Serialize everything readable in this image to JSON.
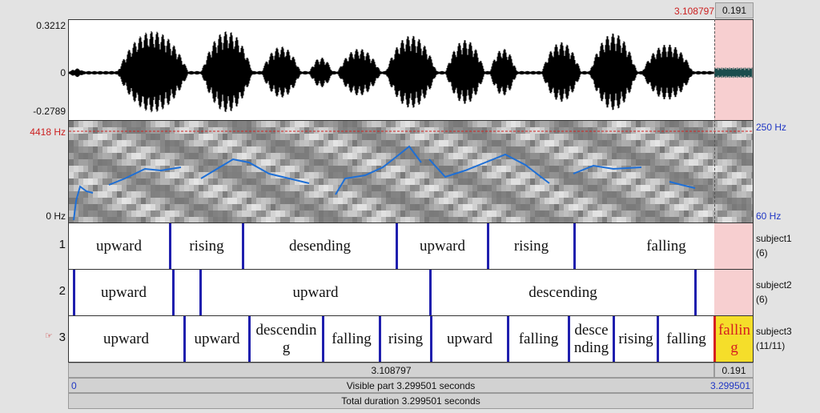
{
  "top": {
    "cursor_time": "3.108797",
    "selection_len": "0.191"
  },
  "waveform": {
    "y_max": "0.3212",
    "y_zero": "0",
    "y_min": "-0.2789"
  },
  "spectrogram": {
    "freq_max": "4418 Hz",
    "freq_min": "0 Hz",
    "pitch_max": "250 Hz",
    "pitch_min": "60 Hz"
  },
  "tiers": [
    {
      "number": "1",
      "name": "subject1",
      "count": "(6)",
      "intervals": [
        "upward",
        "rising",
        "desending",
        "upward",
        "rising",
        "falling"
      ]
    },
    {
      "number": "2",
      "name": "subject2",
      "count": "(6)",
      "intervals": [
        "upward",
        "upward",
        "descending"
      ]
    },
    {
      "number": "3",
      "name": "subject3",
      "count": "(11/11)",
      "marker": "☞",
      "intervals": [
        "upward",
        "upward",
        "descendin g",
        "falling",
        "rising",
        "upward",
        "falling",
        "desce nding",
        "rising",
        "falling",
        "fallin g"
      ]
    }
  ],
  "bottom": {
    "cursor_time": "3.108797",
    "selection_len": "0.191",
    "visible_start": "0",
    "visible_label": "Visible part 3.299501 seconds",
    "visible_end": "3.299501",
    "total_label": "Total duration 3.299501 seconds"
  },
  "colors": {
    "selection": "#f7cfd0",
    "boundary": "#1f1fae",
    "pitch": "#1e6fd6",
    "selected_interval": "#f5de2a"
  }
}
